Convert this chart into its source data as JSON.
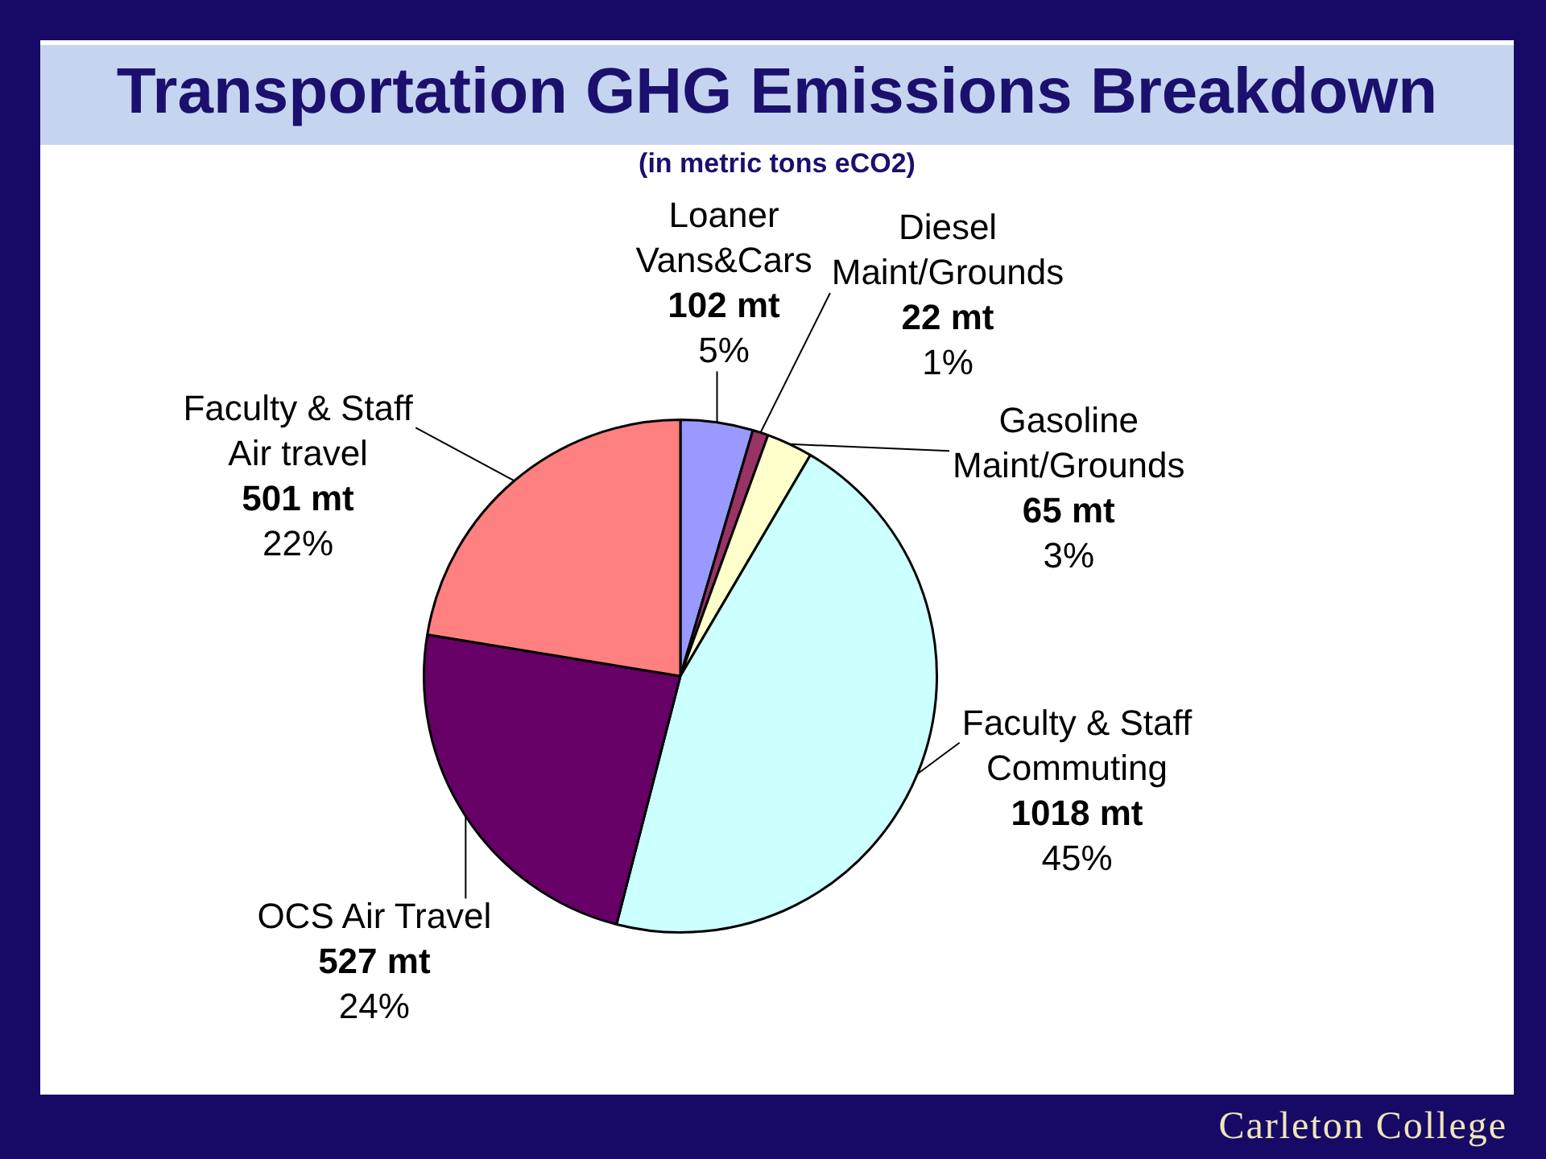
{
  "chart_data": {
    "type": "pie",
    "title": "Transportation GHG Emissions Breakdown",
    "subtitle": "(in metric tons eCO2)",
    "categories": [
      "Loaner Vans&Cars",
      "Diesel Maint/Grounds",
      "Gasoline Maint/Grounds",
      "Faculty & Staff Commuting",
      "OCS Air Travel",
      "Faculty & Staff Air travel"
    ],
    "values": [
      102,
      22,
      65,
      1018,
      527,
      501
    ],
    "colors": [
      "#9999ff",
      "#993366",
      "#ffffcc",
      "#ccffff",
      "#660066",
      "#ff8080"
    ],
    "value_labels": [
      "102 mt\n5%",
      "22 mt\n1%",
      "65 mt\n3%",
      "1018 mt\n45%",
      "527 mt\n24%",
      "501 mt\n22%"
    ],
    "annotations": [
      "Carleton College"
    ]
  }
}
